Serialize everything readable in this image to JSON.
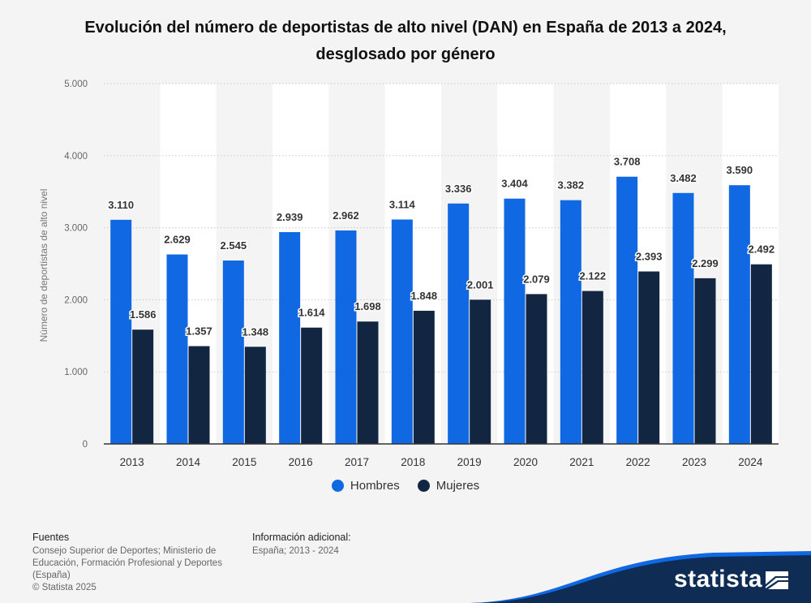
{
  "title": "Evolución del número de deportistas de alto nivel (DAN) en España de 2013 a 2024, desglosado por género",
  "chart_data": {
    "type": "bar",
    "categories": [
      "2013",
      "2014",
      "2015",
      "2016",
      "2017",
      "2018",
      "2019",
      "2020",
      "2021",
      "2022",
      "2023",
      "2024"
    ],
    "series": [
      {
        "name": "Hombres",
        "color": "#1168e3",
        "values": [
          3110,
          2629,
          2545,
          2939,
          2962,
          3114,
          3336,
          3404,
          3382,
          3708,
          3482,
          3590
        ],
        "labels": [
          "3.110",
          "2.629",
          "2.545",
          "2.939",
          "2.962",
          "3.114",
          "3.336",
          "3.404",
          "3.382",
          "3.708",
          "3.482",
          "3.590"
        ]
      },
      {
        "name": "Mujeres",
        "color": "#132641",
        "values": [
          1586,
          1357,
          1348,
          1614,
          1698,
          1848,
          2001,
          2079,
          2122,
          2393,
          2299,
          2492
        ],
        "labels": [
          "1.586",
          "1.357",
          "1.348",
          "1.614",
          "1.698",
          "1.848",
          "2.001",
          "2.079",
          "2.122",
          "2.393",
          "2.299",
          "2.492"
        ]
      }
    ],
    "ylabel": "Número de deportistas de alto nivel",
    "ylim": [
      0,
      5000
    ],
    "yticks": [
      0,
      1000,
      2000,
      3000,
      4000,
      5000
    ],
    "ytick_labels": [
      "0",
      "1.000",
      "2.000",
      "3.000",
      "4.000",
      "5.000"
    ],
    "grid": true,
    "legend": "bottom-center"
  },
  "footer": {
    "sources_heading": "Fuentes",
    "sources_lines": [
      "Consejo Superior de Deportes; Ministerio de",
      "Educación, Formación Profesional y Deportes",
      "(España)"
    ],
    "copyright": "© Statista 2025",
    "info_heading": "Información adicional:",
    "info_text": "España; 2013 - 2024"
  },
  "brand": {
    "name": "statista",
    "accent": "#1168e3",
    "dark": "#0f2d54"
  }
}
